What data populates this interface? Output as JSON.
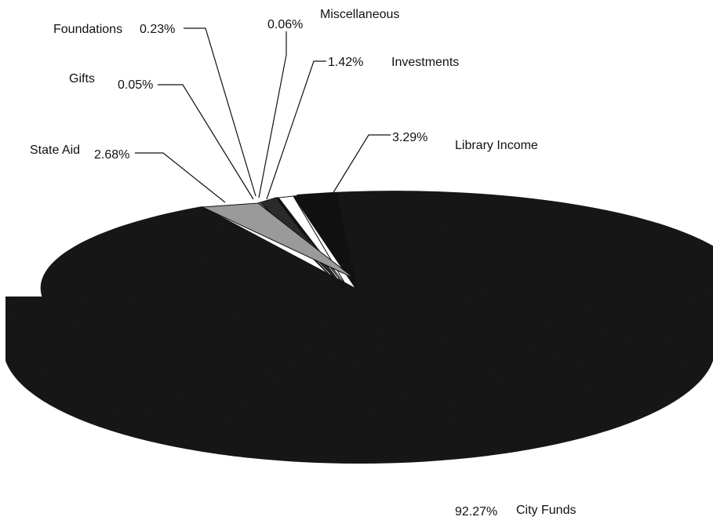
{
  "chart_data": {
    "type": "pie",
    "title": "",
    "style": "3d-exploded-tilted",
    "slices": [
      {
        "label": "City Funds",
        "value": 92.27,
        "value_label": "92.27%",
        "color": "#151515"
      },
      {
        "label": "Library Income",
        "value": 3.29,
        "value_label": "3.29%",
        "color": "#111111"
      },
      {
        "label": "Investments",
        "value": 1.42,
        "value_label": "1.42%",
        "color": "#ffffff"
      },
      {
        "label": "Miscellaneous",
        "value": 0.06,
        "value_label": "0.06%",
        "color": "#111111"
      },
      {
        "label": "Foundations",
        "value": 0.23,
        "value_label": "0.23%",
        "color": "#2a2a2a"
      },
      {
        "label": "Gifts",
        "value": 0.05,
        "value_label": "0.05%",
        "color": "#777777"
      },
      {
        "label": "State Aid",
        "value": 2.68,
        "value_label": "2.68%",
        "color": "#9a9a9a"
      }
    ]
  }
}
